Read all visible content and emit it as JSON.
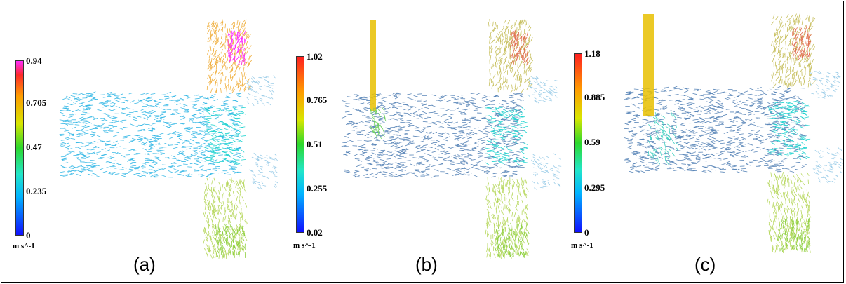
{
  "panels": [
    {
      "label": "(a)",
      "colorbar": {
        "ticks": [
          "0.94",
          "0.705",
          "0.47",
          "0.235",
          "0"
        ],
        "unit": "m s^-1",
        "min": 0,
        "max": 0.94,
        "top_color": "#ff2cff"
      }
    },
    {
      "label": "(b)",
      "colorbar": {
        "ticks": [
          "1.02",
          "0.765",
          "0.51",
          "0.255",
          "0.02"
        ],
        "unit": "m s^-1",
        "min": 0.02,
        "max": 1.02,
        "top_color": "#ff2020"
      }
    },
    {
      "label": "(c)",
      "colorbar": {
        "ticks": [
          "1.18",
          "0.885",
          "0.59",
          "0.295",
          "0"
        ],
        "unit": "m s^-1",
        "min": 0,
        "max": 1.18,
        "top_color": "#ff2020"
      }
    }
  ],
  "colors": {
    "slow": "#1e6fd6",
    "medium": "#22d4d0",
    "fast": "#e0d000",
    "peak": "#ff2cff",
    "jet": "#e8c000"
  }
}
